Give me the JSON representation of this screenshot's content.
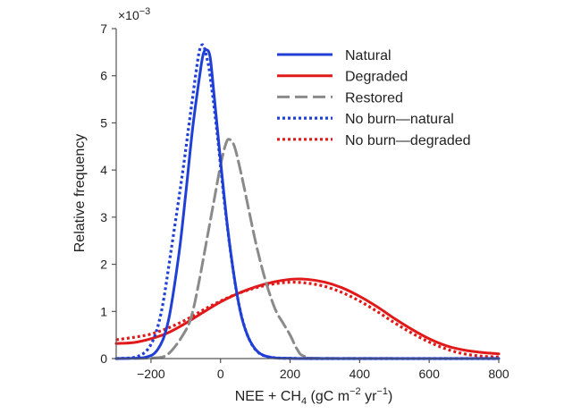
{
  "chart_data": {
    "type": "line",
    "title": "",
    "xlabel": "NEE + CH",
    "xlabel_sub": "4",
    "xlabel_unit_open": " (gC m",
    "xlabel_sup1": "−2",
    "xlabel_mid": " yr",
    "xlabel_sup2": "−1",
    "xlabel_close": ")",
    "ylabel": "Relative frequency",
    "y_multiplier": "×10",
    "y_multiplier_exp": "−3",
    "xlim": [
      -300,
      800
    ],
    "ylim": [
      0,
      7
    ],
    "x_ticks": [
      -200,
      0,
      200,
      400,
      600,
      800
    ],
    "x_tick_labels": [
      "−200",
      "0",
      "200",
      "400",
      "600",
      "800"
    ],
    "y_ticks": [
      0,
      1,
      2,
      3,
      4,
      5,
      6,
      7
    ],
    "y_tick_labels": [
      "0",
      "1",
      "2",
      "3",
      "4",
      "5",
      "6",
      "7"
    ],
    "grid": false,
    "legend_position": "top-right",
    "series": [
      {
        "name": "Natural",
        "color": "#1f3fd6",
        "style": "solid",
        "points": [
          [
            -300,
            0
          ],
          [
            -220,
            0.02
          ],
          [
            -180,
            0.2
          ],
          [
            -150,
            0.8
          ],
          [
            -120,
            2.2
          ],
          [
            -100,
            3.5
          ],
          [
            -80,
            4.9
          ],
          [
            -60,
            6.0
          ],
          [
            -50,
            6.45
          ],
          [
            -40,
            6.55
          ],
          [
            -30,
            6.4
          ],
          [
            -20,
            5.7
          ],
          [
            0,
            4.2
          ],
          [
            20,
            2.8
          ],
          [
            40,
            1.7
          ],
          [
            60,
            0.9
          ],
          [
            80,
            0.45
          ],
          [
            100,
            0.2
          ],
          [
            120,
            0.08
          ],
          [
            150,
            0.02
          ],
          [
            200,
            0.005
          ],
          [
            300,
            0
          ],
          [
            800,
            0
          ]
        ]
      },
      {
        "name": "Degraded",
        "color": "#e01a1a",
        "style": "solid",
        "points": [
          [
            -300,
            0.32
          ],
          [
            -250,
            0.34
          ],
          [
            -200,
            0.42
          ],
          [
            -150,
            0.55
          ],
          [
            -100,
            0.75
          ],
          [
            -50,
            0.98
          ],
          [
            0,
            1.2
          ],
          [
            50,
            1.38
          ],
          [
            100,
            1.52
          ],
          [
            150,
            1.62
          ],
          [
            200,
            1.68
          ],
          [
            250,
            1.68
          ],
          [
            300,
            1.62
          ],
          [
            350,
            1.5
          ],
          [
            400,
            1.32
          ],
          [
            450,
            1.1
          ],
          [
            500,
            0.85
          ],
          [
            550,
            0.62
          ],
          [
            600,
            0.42
          ],
          [
            650,
            0.27
          ],
          [
            700,
            0.18
          ],
          [
            750,
            0.13
          ],
          [
            800,
            0.1
          ]
        ]
      },
      {
        "name": "Restored",
        "color": "#8a8a8a",
        "style": "dashed",
        "points": [
          [
            -300,
            0
          ],
          [
            -200,
            0.01
          ],
          [
            -150,
            0.1
          ],
          [
            -100,
            0.6
          ],
          [
            -80,
            1.0
          ],
          [
            -60,
            1.7
          ],
          [
            -40,
            2.5
          ],
          [
            -20,
            3.3
          ],
          [
            0,
            4.1
          ],
          [
            15,
            4.55
          ],
          [
            25,
            4.65
          ],
          [
            40,
            4.5
          ],
          [
            60,
            3.9
          ],
          [
            80,
            3.2
          ],
          [
            100,
            2.5
          ],
          [
            120,
            1.9
          ],
          [
            140,
            1.4
          ],
          [
            160,
            1.0
          ],
          [
            180,
            0.75
          ],
          [
            200,
            0.5
          ],
          [
            220,
            0.2
          ],
          [
            240,
            0.05
          ],
          [
            300,
            0.005
          ],
          [
            800,
            0
          ]
        ]
      },
      {
        "name": "No burn—natural",
        "color": "#1f3fd6",
        "style": "dotted",
        "points": [
          [
            -300,
            0
          ],
          [
            -240,
            0.04
          ],
          [
            -200,
            0.3
          ],
          [
            -170,
            1.0
          ],
          [
            -140,
            2.4
          ],
          [
            -110,
            3.9
          ],
          [
            -90,
            5.0
          ],
          [
            -70,
            6.1
          ],
          [
            -60,
            6.55
          ],
          [
            -50,
            6.65
          ],
          [
            -40,
            6.4
          ],
          [
            -30,
            6.0
          ],
          [
            -10,
            4.8
          ],
          [
            10,
            3.4
          ],
          [
            30,
            2.2
          ],
          [
            50,
            1.25
          ],
          [
            70,
            0.65
          ],
          [
            90,
            0.3
          ],
          [
            110,
            0.12
          ],
          [
            130,
            0.05
          ],
          [
            160,
            0.015
          ],
          [
            200,
            0.005
          ],
          [
            300,
            0
          ],
          [
            800,
            0
          ]
        ]
      },
      {
        "name": "No burn—degraded",
        "color": "#e01a1a",
        "style": "dotted",
        "points": [
          [
            -300,
            0.4
          ],
          [
            -250,
            0.45
          ],
          [
            -200,
            0.52
          ],
          [
            -150,
            0.65
          ],
          [
            -100,
            0.82
          ],
          [
            -50,
            1.03
          ],
          [
            0,
            1.22
          ],
          [
            50,
            1.38
          ],
          [
            100,
            1.5
          ],
          [
            150,
            1.58
          ],
          [
            200,
            1.62
          ],
          [
            250,
            1.6
          ],
          [
            300,
            1.53
          ],
          [
            350,
            1.4
          ],
          [
            400,
            1.22
          ],
          [
            450,
            1.0
          ],
          [
            500,
            0.76
          ],
          [
            550,
            0.54
          ],
          [
            600,
            0.35
          ],
          [
            650,
            0.2
          ],
          [
            700,
            0.1
          ],
          [
            750,
            0.05
          ],
          [
            800,
            0.03
          ]
        ]
      }
    ]
  }
}
